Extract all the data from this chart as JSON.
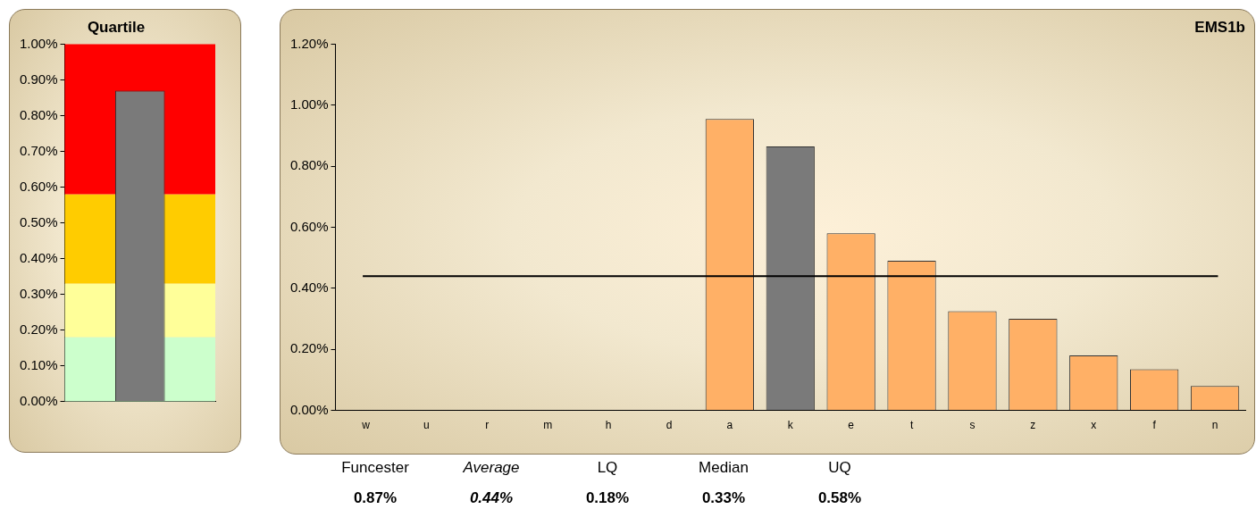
{
  "chart_data": [
    {
      "type": "bar",
      "title": "Quartile",
      "categories": [
        null
      ],
      "series": [
        {
          "color": "#7a7a7a",
          "values": [
            0.87
          ]
        }
      ],
      "ylim": [
        0,
        1
      ],
      "yticks": [
        {
          "value": 0,
          "label": "0.00%"
        },
        {
          "value": 0.1,
          "label": "0.10%"
        },
        {
          "value": 0.2,
          "label": "0.20%"
        },
        {
          "value": 0.3,
          "label": "0.30%"
        },
        {
          "value": 0.4,
          "label": "0.40%"
        },
        {
          "value": 0.5,
          "label": "0.50%"
        },
        {
          "value": 0.6,
          "label": "0.60%"
        },
        {
          "value": 0.7,
          "label": "0.70%"
        },
        {
          "value": 0.8,
          "label": "0.80%"
        },
        {
          "value": 0.9,
          "label": "0.90%"
        },
        {
          "value": 1,
          "label": "1.00%"
        }
      ],
      "bands": [
        {
          "axis": "y",
          "from": 0,
          "to": 0.18,
          "color": "#ccffcc"
        },
        {
          "axis": "y",
          "from": 0.18,
          "to": 0.33,
          "color": "#ffff99"
        },
        {
          "axis": "y",
          "from": 0.33,
          "to": 0.58,
          "color": "#ffcc00"
        },
        {
          "axis": "y",
          "from": 0.58,
          "to": 1,
          "color": "#ff0000"
        }
      ]
    },
    {
      "type": "bar",
      "title": "EMS1b",
      "categories": [
        "w",
        "u",
        "r",
        "m",
        "h",
        "d",
        "a",
        "k",
        "e",
        "t",
        "s",
        "z",
        "x",
        "f",
        "n"
      ],
      "series": [
        {
          "colors": [
            "#ffb066",
            "#ffb066",
            "#ffb066",
            "#ffb066",
            "#ffb066",
            "#ffb066",
            "#ffb066",
            "#7a7a7a",
            "#ffb066",
            "#ffb066",
            "#ffb066",
            "#ffb066",
            "#ffb066",
            "#ffb066",
            "#ffb066"
          ],
          "values": [
            null,
            null,
            null,
            null,
            null,
            null,
            0.955,
            0.865,
            0.58,
            0.49,
            0.325,
            0.3,
            0.18,
            0.135,
            0.08
          ]
        }
      ],
      "ylim": [
        0,
        1.2
      ],
      "yticks": [
        {
          "value": 0,
          "label": "0.00%"
        },
        {
          "value": 0.2,
          "label": "0.20%"
        },
        {
          "value": 0.4,
          "label": "0.40%"
        },
        {
          "value": 0.6,
          "label": "0.60%"
        },
        {
          "value": 0.8,
          "label": "0.80%"
        },
        {
          "value": 1,
          "label": "1.00%"
        },
        {
          "value": 1.2,
          "label": "1.20%"
        }
      ],
      "ref_lines": [
        {
          "axis": "y",
          "value": 0.44,
          "color": "#000000"
        }
      ],
      "annotations": [
        "Funcester",
        "Average",
        "LQ",
        "Median",
        "UQ",
        "0.87%",
        "0.44%",
        "0.18%",
        "0.33%",
        "0.58%"
      ]
    }
  ]
}
